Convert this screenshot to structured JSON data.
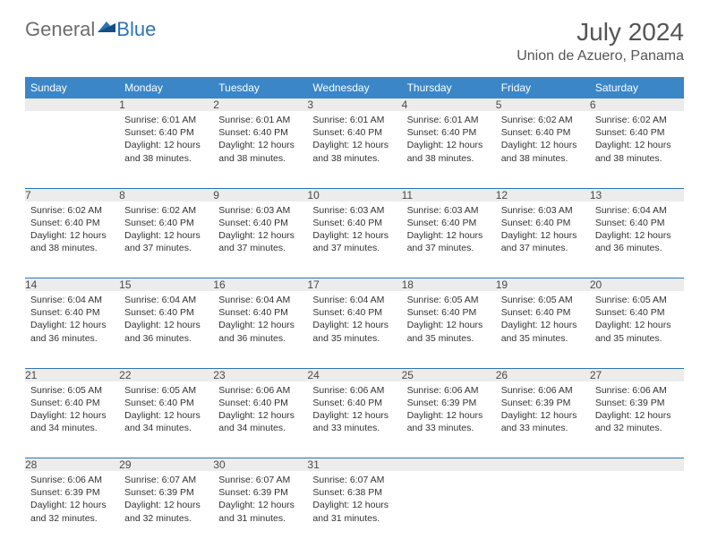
{
  "logo": {
    "general": "General",
    "blue": "Blue"
  },
  "title": "July 2024",
  "location": "Union de Azuero, Panama",
  "colors": {
    "header_bg": "#3b86c7",
    "header_text": "#ffffff",
    "daynum_bg": "#ececec",
    "daynum_text": "#4a4a4a",
    "body_text": "#333333",
    "week_separator": "#2c74b8",
    "logo_gray": "#6d6d6d",
    "logo_blue": "#2c74b8",
    "title_color": "#555555"
  },
  "weekdays": [
    "Sunday",
    "Monday",
    "Tuesday",
    "Wednesday",
    "Thursday",
    "Friday",
    "Saturday"
  ],
  "weeks": [
    [
      null,
      {
        "n": "1",
        "sr": "Sunrise: 6:01 AM",
        "ss": "Sunset: 6:40 PM",
        "dl": "Daylight: 12 hours and 38 minutes."
      },
      {
        "n": "2",
        "sr": "Sunrise: 6:01 AM",
        "ss": "Sunset: 6:40 PM",
        "dl": "Daylight: 12 hours and 38 minutes."
      },
      {
        "n": "3",
        "sr": "Sunrise: 6:01 AM",
        "ss": "Sunset: 6:40 PM",
        "dl": "Daylight: 12 hours and 38 minutes."
      },
      {
        "n": "4",
        "sr": "Sunrise: 6:01 AM",
        "ss": "Sunset: 6:40 PM",
        "dl": "Daylight: 12 hours and 38 minutes."
      },
      {
        "n": "5",
        "sr": "Sunrise: 6:02 AM",
        "ss": "Sunset: 6:40 PM",
        "dl": "Daylight: 12 hours and 38 minutes."
      },
      {
        "n": "6",
        "sr": "Sunrise: 6:02 AM",
        "ss": "Sunset: 6:40 PM",
        "dl": "Daylight: 12 hours and 38 minutes."
      }
    ],
    [
      {
        "n": "7",
        "sr": "Sunrise: 6:02 AM",
        "ss": "Sunset: 6:40 PM",
        "dl": "Daylight: 12 hours and 38 minutes."
      },
      {
        "n": "8",
        "sr": "Sunrise: 6:02 AM",
        "ss": "Sunset: 6:40 PM",
        "dl": "Daylight: 12 hours and 37 minutes."
      },
      {
        "n": "9",
        "sr": "Sunrise: 6:03 AM",
        "ss": "Sunset: 6:40 PM",
        "dl": "Daylight: 12 hours and 37 minutes."
      },
      {
        "n": "10",
        "sr": "Sunrise: 6:03 AM",
        "ss": "Sunset: 6:40 PM",
        "dl": "Daylight: 12 hours and 37 minutes."
      },
      {
        "n": "11",
        "sr": "Sunrise: 6:03 AM",
        "ss": "Sunset: 6:40 PM",
        "dl": "Daylight: 12 hours and 37 minutes."
      },
      {
        "n": "12",
        "sr": "Sunrise: 6:03 AM",
        "ss": "Sunset: 6:40 PM",
        "dl": "Daylight: 12 hours and 37 minutes."
      },
      {
        "n": "13",
        "sr": "Sunrise: 6:04 AM",
        "ss": "Sunset: 6:40 PM",
        "dl": "Daylight: 12 hours and 36 minutes."
      }
    ],
    [
      {
        "n": "14",
        "sr": "Sunrise: 6:04 AM",
        "ss": "Sunset: 6:40 PM",
        "dl": "Daylight: 12 hours and 36 minutes."
      },
      {
        "n": "15",
        "sr": "Sunrise: 6:04 AM",
        "ss": "Sunset: 6:40 PM",
        "dl": "Daylight: 12 hours and 36 minutes."
      },
      {
        "n": "16",
        "sr": "Sunrise: 6:04 AM",
        "ss": "Sunset: 6:40 PM",
        "dl": "Daylight: 12 hours and 36 minutes."
      },
      {
        "n": "17",
        "sr": "Sunrise: 6:04 AM",
        "ss": "Sunset: 6:40 PM",
        "dl": "Daylight: 12 hours and 35 minutes."
      },
      {
        "n": "18",
        "sr": "Sunrise: 6:05 AM",
        "ss": "Sunset: 6:40 PM",
        "dl": "Daylight: 12 hours and 35 minutes."
      },
      {
        "n": "19",
        "sr": "Sunrise: 6:05 AM",
        "ss": "Sunset: 6:40 PM",
        "dl": "Daylight: 12 hours and 35 minutes."
      },
      {
        "n": "20",
        "sr": "Sunrise: 6:05 AM",
        "ss": "Sunset: 6:40 PM",
        "dl": "Daylight: 12 hours and 35 minutes."
      }
    ],
    [
      {
        "n": "21",
        "sr": "Sunrise: 6:05 AM",
        "ss": "Sunset: 6:40 PM",
        "dl": "Daylight: 12 hours and 34 minutes."
      },
      {
        "n": "22",
        "sr": "Sunrise: 6:05 AM",
        "ss": "Sunset: 6:40 PM",
        "dl": "Daylight: 12 hours and 34 minutes."
      },
      {
        "n": "23",
        "sr": "Sunrise: 6:06 AM",
        "ss": "Sunset: 6:40 PM",
        "dl": "Daylight: 12 hours and 34 minutes."
      },
      {
        "n": "24",
        "sr": "Sunrise: 6:06 AM",
        "ss": "Sunset: 6:40 PM",
        "dl": "Daylight: 12 hours and 33 minutes."
      },
      {
        "n": "25",
        "sr": "Sunrise: 6:06 AM",
        "ss": "Sunset: 6:39 PM",
        "dl": "Daylight: 12 hours and 33 minutes."
      },
      {
        "n": "26",
        "sr": "Sunrise: 6:06 AM",
        "ss": "Sunset: 6:39 PM",
        "dl": "Daylight: 12 hours and 33 minutes."
      },
      {
        "n": "27",
        "sr": "Sunrise: 6:06 AM",
        "ss": "Sunset: 6:39 PM",
        "dl": "Daylight: 12 hours and 32 minutes."
      }
    ],
    [
      {
        "n": "28",
        "sr": "Sunrise: 6:06 AM",
        "ss": "Sunset: 6:39 PM",
        "dl": "Daylight: 12 hours and 32 minutes."
      },
      {
        "n": "29",
        "sr": "Sunrise: 6:07 AM",
        "ss": "Sunset: 6:39 PM",
        "dl": "Daylight: 12 hours and 32 minutes."
      },
      {
        "n": "30",
        "sr": "Sunrise: 6:07 AM",
        "ss": "Sunset: 6:39 PM",
        "dl": "Daylight: 12 hours and 31 minutes."
      },
      {
        "n": "31",
        "sr": "Sunrise: 6:07 AM",
        "ss": "Sunset: 6:38 PM",
        "dl": "Daylight: 12 hours and 31 minutes."
      },
      null,
      null,
      null
    ]
  ]
}
